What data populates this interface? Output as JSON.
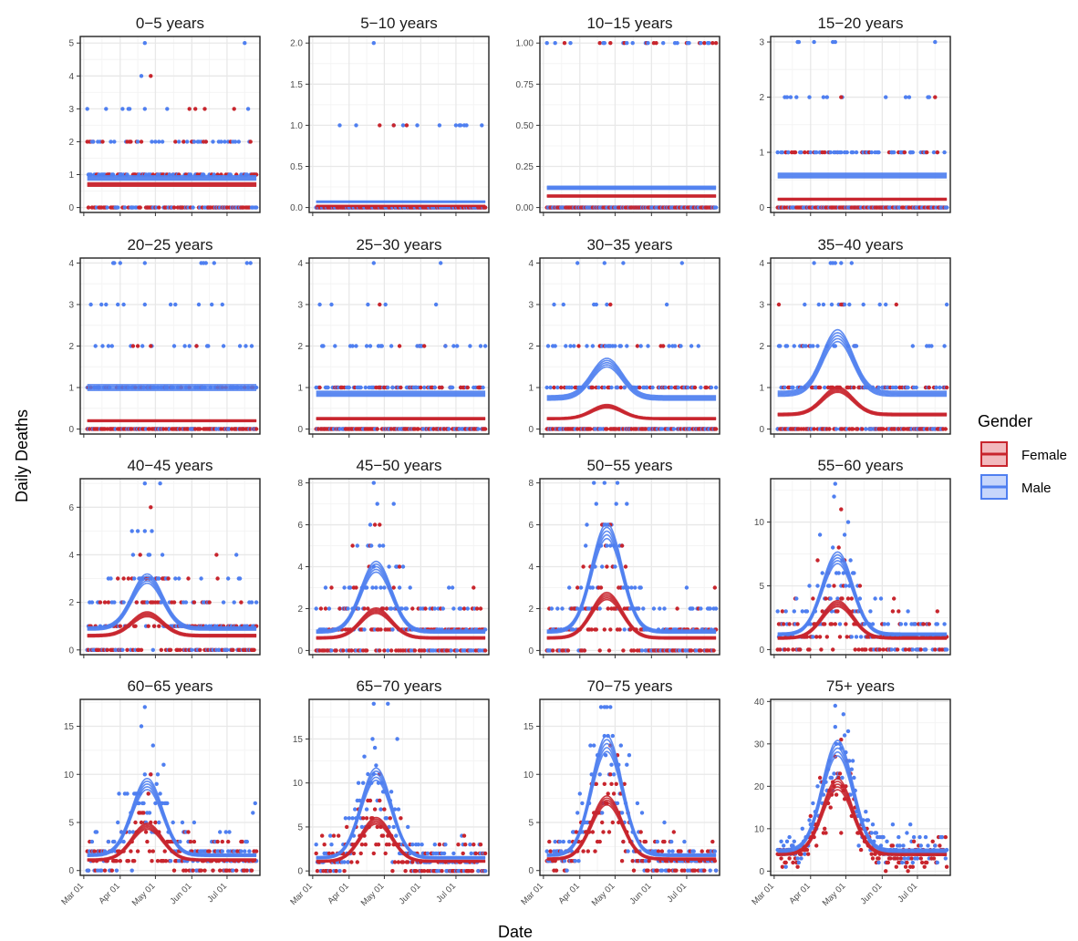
{
  "colors": {
    "female": "#c8252d",
    "male": "#4f7ff0",
    "female_fill": "#f2b9bd",
    "male_fill": "#c7d6fb",
    "grid_major": "#e8e8e8",
    "grid_minor": "#f4f4f4",
    "panel_border": "#222222"
  },
  "chart_data": {
    "type": "scatter",
    "layout": "facet-grid 4x4",
    "xlabel": "Date",
    "ylabel": "Daily Deaths",
    "x_ticks": [
      "Mar 01",
      "Apr 01",
      "May 01",
      "Jun 01",
      "Jul 01"
    ],
    "x_range": [
      "2020-03-01",
      "2020-07-26"
    ],
    "grid": true,
    "legend": {
      "title": "Gender",
      "position": "right",
      "entries": [
        "Female",
        "Male"
      ]
    },
    "facets": [
      {
        "title": "0−5 years",
        "ylim": [
          -0.15,
          5.2
        ],
        "yticks": [
          "0",
          "1",
          "2",
          "3",
          "4",
          "5"
        ],
        "series": [
          {
            "name": "Female",
            "curve": {
              "base": 0.7,
              "peak": 0.7,
              "peak_date": "2020-04-24"
            },
            "max_point": 4
          },
          {
            "name": "Male",
            "curve": {
              "base": 0.9,
              "peak": 0.9,
              "peak_date": "2020-04-24"
            },
            "max_point": 5
          }
        ]
      },
      {
        "title": "5−10 years",
        "ylim": [
          -0.06,
          2.08
        ],
        "yticks": [
          "0.0",
          "0.5",
          "1.0",
          "1.5",
          "2.0"
        ],
        "series": [
          {
            "name": "Female",
            "curve": {
              "base": 0.02,
              "peak": 0.02,
              "peak_date": "2020-04-24"
            },
            "max_point": 1
          },
          {
            "name": "Male",
            "curve": {
              "base": 0.07,
              "peak": 0.07,
              "peak_date": "2020-04-24"
            },
            "max_point": 2
          }
        ]
      },
      {
        "title": "10−15 years",
        "ylim": [
          -0.03,
          1.04
        ],
        "yticks": [
          "0.00",
          "0.25",
          "0.50",
          "0.75",
          "1.00"
        ],
        "series": [
          {
            "name": "Female",
            "curve": {
              "base": 0.07,
              "peak": 0.07,
              "peak_date": "2020-04-24"
            },
            "max_point": 1
          },
          {
            "name": "Male",
            "curve": {
              "base": 0.12,
              "peak": 0.12,
              "peak_date": "2020-04-24"
            },
            "max_point": 1
          }
        ]
      },
      {
        "title": "15−20 years",
        "ylim": [
          -0.09,
          3.1
        ],
        "yticks": [
          "0",
          "1",
          "2",
          "3"
        ],
        "series": [
          {
            "name": "Female",
            "curve": {
              "base": 0.15,
              "peak": 0.15,
              "peak_date": "2020-04-24"
            },
            "max_point": 2
          },
          {
            "name": "Male",
            "curve": {
              "base": 0.58,
              "peak": 0.58,
              "peak_date": "2020-04-24"
            },
            "max_point": 3
          }
        ]
      },
      {
        "title": "20−25 years",
        "ylim": [
          -0.12,
          4.12
        ],
        "yticks": [
          "0",
          "1",
          "2",
          "3",
          "4"
        ],
        "series": [
          {
            "name": "Female",
            "curve": {
              "base": 0.2,
              "peak": 0.2,
              "peak_date": "2020-04-24"
            },
            "max_point": 2
          },
          {
            "name": "Male",
            "curve": {
              "base": 1.0,
              "peak": 1.0,
              "peak_date": "2020-04-24"
            },
            "max_point": 4
          }
        ]
      },
      {
        "title": "25−30 years",
        "ylim": [
          -0.12,
          4.12
        ],
        "yticks": [
          "0",
          "1",
          "2",
          "3",
          "4"
        ],
        "series": [
          {
            "name": "Female",
            "curve": {
              "base": 0.25,
              "peak": 0.25,
              "peak_date": "2020-04-24"
            },
            "max_point": 3
          },
          {
            "name": "Male",
            "curve": {
              "base": 0.85,
              "peak": 0.85,
              "peak_date": "2020-04-24"
            },
            "max_point": 4
          }
        ]
      },
      {
        "title": "30−35 years",
        "ylim": [
          -0.12,
          4.12
        ],
        "yticks": [
          "0",
          "1",
          "2",
          "3",
          "4"
        ],
        "series": [
          {
            "name": "Female",
            "curve": {
              "base": 0.25,
              "peak": 0.55,
              "peak_date": "2020-04-24"
            },
            "max_point": 3
          },
          {
            "name": "Male",
            "curve": {
              "base": 0.75,
              "peak": 1.6,
              "peak_date": "2020-04-24"
            },
            "max_point": 4
          }
        ]
      },
      {
        "title": "35−40 years",
        "ylim": [
          -0.12,
          4.12
        ],
        "yticks": [
          "0",
          "1",
          "2",
          "3",
          "4"
        ],
        "series": [
          {
            "name": "Female",
            "curve": {
              "base": 0.35,
              "peak": 0.95,
              "peak_date": "2020-04-24"
            },
            "max_point": 3
          },
          {
            "name": "Male",
            "curve": {
              "base": 0.85,
              "peak": 2.25,
              "peak_date": "2020-04-24"
            },
            "max_point": 4
          }
        ]
      },
      {
        "title": "40−45 years",
        "ylim": [
          -0.2,
          7.2
        ],
        "yticks": [
          "0",
          "2",
          "4",
          "6"
        ],
        "series": [
          {
            "name": "Female",
            "curve": {
              "base": 0.6,
              "peak": 1.5,
              "peak_date": "2020-04-24"
            },
            "max_point": 6
          },
          {
            "name": "Male",
            "curve": {
              "base": 0.9,
              "peak": 3.0,
              "peak_date": "2020-04-24"
            },
            "max_point": 7
          }
        ]
      },
      {
        "title": "45−50 years",
        "ylim": [
          -0.2,
          8.2
        ],
        "yticks": [
          "0",
          "2",
          "4",
          "6",
          "8"
        ],
        "series": [
          {
            "name": "Female",
            "curve": {
              "base": 0.6,
              "peak": 1.9,
              "peak_date": "2020-04-24"
            },
            "max_point": 6
          },
          {
            "name": "Male",
            "curve": {
              "base": 0.9,
              "peak": 4.0,
              "peak_date": "2020-04-24"
            },
            "max_point": 8
          }
        ]
      },
      {
        "title": "50−55 years",
        "ylim": [
          -0.2,
          8.2
        ],
        "yticks": [
          "0",
          "2",
          "4",
          "6",
          "8"
        ],
        "series": [
          {
            "name": "Female",
            "curve": {
              "base": 0.6,
              "peak": 2.6,
              "peak_date": "2020-04-24"
            },
            "max_point": 6
          },
          {
            "name": "Male",
            "curve": {
              "base": 0.9,
              "peak": 5.7,
              "peak_date": "2020-04-24"
            },
            "max_point": 8
          }
        ]
      },
      {
        "title": "55−60 years",
        "ylim": [
          -0.4,
          13.4
        ],
        "yticks": [
          "0",
          "5",
          "10"
        ],
        "series": [
          {
            "name": "Female",
            "curve": {
              "base": 0.9,
              "peak": 3.6,
              "peak_date": "2020-04-24"
            },
            "max_point": 11
          },
          {
            "name": "Male",
            "curve": {
              "base": 1.2,
              "peak": 7.2,
              "peak_date": "2020-04-24"
            },
            "max_point": 13
          }
        ]
      },
      {
        "title": "60−65 years",
        "ylim": [
          -0.5,
          17.8
        ],
        "yticks": [
          "0",
          "5",
          "10",
          "15"
        ],
        "series": [
          {
            "name": "Female",
            "curve": {
              "base": 1.1,
              "peak": 4.6,
              "peak_date": "2020-04-24"
            },
            "max_point": 10
          },
          {
            "name": "Male",
            "curve": {
              "base": 1.6,
              "peak": 9.0,
              "peak_date": "2020-04-24"
            },
            "max_point": 17
          }
        ]
      },
      {
        "title": "65−70 years",
        "ylim": [
          -0.5,
          19.5
        ],
        "yticks": [
          "0",
          "5",
          "10",
          "15"
        ],
        "series": [
          {
            "name": "Female",
            "curve": {
              "base": 1.1,
              "peak": 5.7,
              "peak_date": "2020-04-24"
            },
            "max_point": 11
          },
          {
            "name": "Male",
            "curve": {
              "base": 1.5,
              "peak": 11.0,
              "peak_date": "2020-04-24"
            },
            "max_point": 19
          }
        ]
      },
      {
        "title": "70−75 years",
        "ylim": [
          -0.5,
          17.8
        ],
        "yticks": [
          "0",
          "5",
          "10",
          "15"
        ],
        "series": [
          {
            "name": "Female",
            "curve": {
              "base": 1.2,
              "peak": 7.3,
              "peak_date": "2020-04-24"
            },
            "max_point": 13
          },
          {
            "name": "Male",
            "curve": {
              "base": 1.6,
              "peak": 13.2,
              "peak_date": "2020-04-24"
            },
            "max_point": 17
          }
        ]
      },
      {
        "title": "75+ years",
        "ylim": [
          -1.0,
          40.5
        ],
        "yticks": [
          "0",
          "10",
          "20",
          "30",
          "40"
        ],
        "series": [
          {
            "name": "Female",
            "curve": {
              "base": 4.0,
              "peak": 20.5,
              "peak_date": "2020-04-24"
            },
            "max_point": 31
          },
          {
            "name": "Male",
            "curve": {
              "base": 4.8,
              "peak": 29.0,
              "peak_date": "2020-04-24"
            },
            "max_point": 39
          }
        ]
      }
    ]
  }
}
